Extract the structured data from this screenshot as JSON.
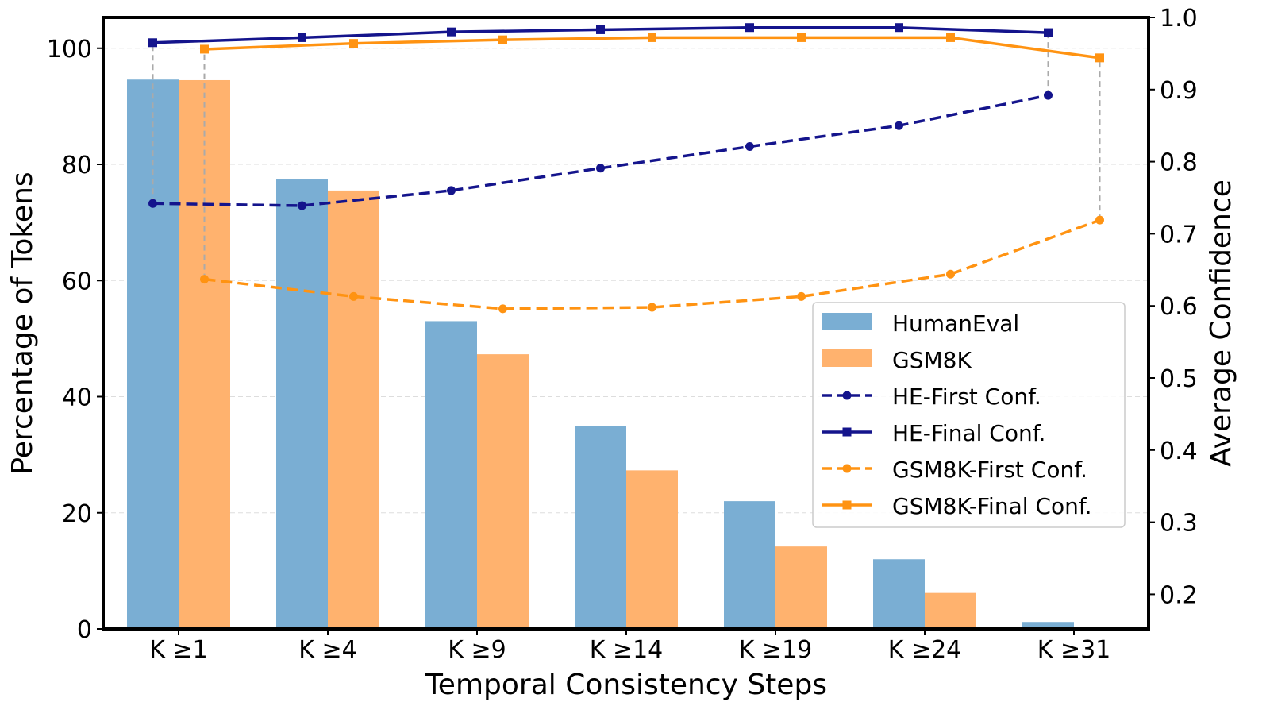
{
  "chart_data": {
    "type": "bar",
    "xlabel": "Temporal Consistency Steps",
    "ylabel": "Percentage of Tokens",
    "y2label": "Average Confidence",
    "categories": [
      "K ≥1",
      "K ≥4",
      "K ≥9",
      "K ≥14",
      "K ≥19",
      "K ≥24",
      "K ≥31"
    ],
    "ylim": [
      0,
      105.3
    ],
    "y2lim": [
      0.152,
      1.0
    ],
    "yticks": [
      0,
      20,
      40,
      60,
      80,
      100
    ],
    "y2ticks": [
      "0.2",
      "0.3",
      "0.4",
      "0.5",
      "0.6",
      "0.7",
      "0.8",
      "0.9",
      "1.0"
    ],
    "grid": true,
    "legend_position": "center-right",
    "bars": [
      {
        "name": "HumanEval",
        "color": "#7aaed3",
        "values": [
          94.6,
          77.4,
          53.0,
          35.0,
          22.0,
          12.0,
          1.2
        ]
      },
      {
        "name": "GSM8K",
        "color": "#ffb26e",
        "values": [
          94.5,
          75.5,
          47.3,
          27.3,
          14.2,
          6.2,
          0.2
        ]
      }
    ],
    "lines": [
      {
        "name": "HE-First Conf.",
        "color": "#14148c",
        "dash": true,
        "marker": "circle",
        "group": 0,
        "values": [
          0.742,
          0.739,
          0.76,
          0.791,
          0.821,
          0.85,
          0.892
        ]
      },
      {
        "name": "HE-Final Conf.",
        "color": "#14148c",
        "dash": false,
        "marker": "square",
        "group": 0,
        "values": [
          0.965,
          0.972,
          0.98,
          0.983,
          0.986,
          0.986,
          0.979
        ]
      },
      {
        "name": "GSM8K-First Conf.",
        "color": "#ff9312",
        "dash": true,
        "marker": "circle",
        "group": 1,
        "values": [
          0.637,
          0.613,
          0.596,
          0.598,
          0.613,
          0.644,
          0.719
        ]
      },
      {
        "name": "GSM8K-Final Conf.",
        "color": "#ff9312",
        "dash": false,
        "marker": "square",
        "group": 1,
        "values": [
          0.956,
          0.964,
          0.969,
          0.972,
          0.972,
          0.972,
          0.944
        ]
      }
    ]
  }
}
